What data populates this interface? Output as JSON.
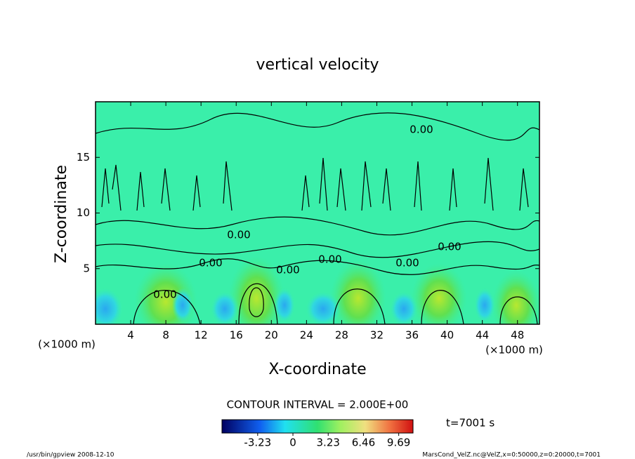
{
  "chart_data": {
    "type": "contour",
    "title": "vertical velocity",
    "xlabel": "X-coordinate",
    "ylabel": "Z-coordinate",
    "x_unit": "(×1000 m)",
    "y_unit": "(×1000 m)",
    "xlim": [
      0,
      50.5
    ],
    "xticks": [
      4,
      8,
      12,
      16,
      20,
      24,
      28,
      32,
      36,
      40,
      44,
      48
    ],
    "ylim": [
      0,
      20
    ],
    "yticks": [
      5,
      10,
      15
    ],
    "contour_interval": "CONTOUR INTERVAL = 2.000E+00",
    "contour_labels": [
      "0.00",
      "0.00",
      "0.00",
      "0.00",
      "0.00",
      "0.00",
      "0.00",
      "0.00"
    ],
    "time_label": "t=7001 s",
    "colorbar": {
      "lim": [
        -6.5,
        11
      ],
      "ticks": [
        -3.23,
        0,
        3.23,
        6.46,
        9.69
      ]
    },
    "footer_left": "/usr/bin/gpview  2008-12-10",
    "footer_right": "MarsCond_VelZ.nc@VelZ,x=0:50000,z=0:20000,t=7001"
  }
}
